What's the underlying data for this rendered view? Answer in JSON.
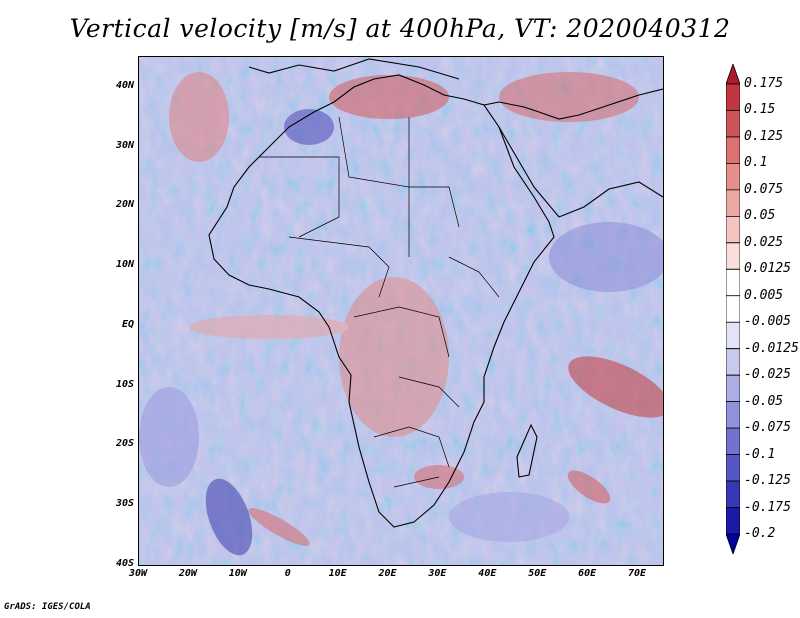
{
  "title": "Vertical velocity [m/s] at 400hPa, VT: 2020040312",
  "map": {
    "lon_range": [
      -30,
      75
    ],
    "lat_range": [
      -40,
      45
    ],
    "lat_labels": [
      "40N",
      "30N",
      "20N",
      "10N",
      "EQ",
      "10S",
      "20S",
      "30S",
      "40S"
    ],
    "lat_values": [
      40,
      30,
      20,
      10,
      0,
      -10,
      -20,
      -30,
      -40
    ],
    "lon_labels": [
      "30W",
      "20W",
      "10W",
      "0",
      "10E",
      "20E",
      "30E",
      "40E",
      "50E",
      "60E",
      "70E"
    ],
    "lon_values": [
      -30,
      -20,
      -10,
      0,
      10,
      20,
      30,
      40,
      50,
      60,
      70
    ]
  },
  "colorbar": {
    "labels": [
      "0.175",
      "0.15",
      "0.125",
      "0.1",
      "0.075",
      "0.05",
      "0.025",
      "0.0125",
      "0.005",
      "-0.005",
      "-0.0125",
      "-0.025",
      "-0.05",
      "-0.075",
      "-0.1",
      "-0.125",
      "-0.175",
      "-0.2"
    ],
    "colors": [
      "#b2182b",
      "#c0373f",
      "#cd5557",
      "#da7370",
      "#e48f8a",
      "#eca9a4",
      "#f3c4c0",
      "#f9dedb",
      "#ffffff",
      "#ffffff",
      "#e3e3f8",
      "#c9c9ef",
      "#adadE5",
      "#9191dc",
      "#7373cf",
      "#5656c4",
      "#3838b6",
      "#1a1aa6",
      "#0000a0"
    ]
  },
  "credit": "GrADS: IGES/COLA"
}
